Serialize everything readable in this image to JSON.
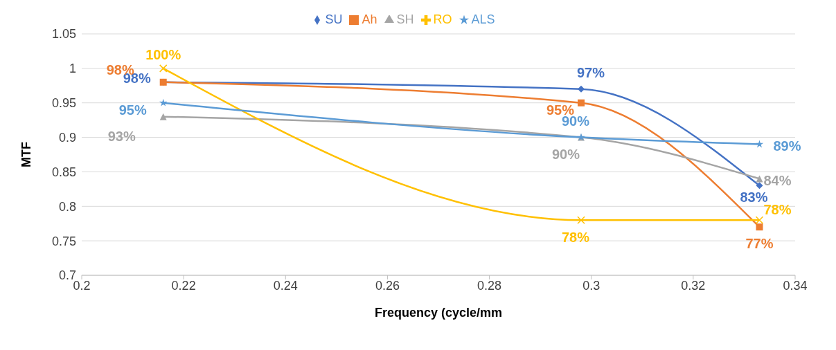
{
  "chart_data": {
    "type": "line",
    "xlabel": "Frequency (cycle/mm",
    "ylabel": "MTF",
    "x": [
      0.216,
      0.298,
      0.333
    ],
    "series": [
      {
        "name": "SU",
        "color": "#4472c4",
        "marker": "diamond",
        "values": [
          0.98,
          0.97,
          0.83
        ],
        "value_labels": [
          "98%",
          "97%",
          "83%"
        ]
      },
      {
        "name": "Ah",
        "color": "#ed7d31",
        "marker": "square",
        "values": [
          0.98,
          0.95,
          0.77
        ],
        "value_labels": [
          "98%",
          "95%",
          "77%"
        ]
      },
      {
        "name": "SH",
        "color": "#a5a5a5",
        "marker": "triangle",
        "values": [
          0.93,
          0.9,
          0.84
        ],
        "value_labels": [
          "93%",
          "90%",
          "84%"
        ]
      },
      {
        "name": "RO",
        "color": "#ffc000",
        "marker": "cross",
        "values": [
          1.0,
          0.78,
          0.78
        ],
        "value_labels": [
          "100%",
          "78%",
          "78%"
        ]
      },
      {
        "name": "ALS",
        "color": "#5b9bd5",
        "marker": "star",
        "values": [
          0.95,
          0.9,
          0.89
        ],
        "value_labels": [
          "95%",
          "90%",
          "89%"
        ]
      }
    ],
    "xlim": [
      0.2,
      0.34
    ],
    "xticks": [
      0.2,
      0.22,
      0.24,
      0.26,
      0.28,
      0.3,
      0.32,
      0.34
    ],
    "ylim": [
      0.7,
      1.05
    ],
    "yticks": [
      0.7,
      0.75,
      0.8,
      0.85,
      0.9,
      0.95,
      1,
      1.05
    ],
    "grid": "y",
    "legend": "top",
    "line_style": "solid"
  }
}
